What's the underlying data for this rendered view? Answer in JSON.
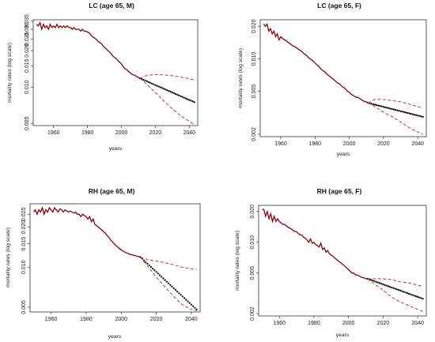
{
  "colors": {
    "observed": "#8b0000",
    "forecast": "#000000",
    "interval": "#c0392b",
    "axis": "#333333"
  },
  "chart_data": [
    {
      "type": "line",
      "title": "LC (age 65, M)",
      "xlabel": "years",
      "ylabel": "mortality rates (log scale)",
      "log_y": true,
      "xlim": [
        1948,
        2045
      ],
      "ylim": [
        0.0048,
        0.036
      ],
      "xticks": [
        1960,
        1980,
        2000,
        2020,
        2040
      ],
      "yticks": [
        0.005,
        0.01,
        0.015,
        0.02,
        0.025,
        0.03,
        0.035
      ],
      "ytick_labels": [
        "0.005",
        "0.010",
        "0.015",
        "0.020",
        "0.025",
        "0.030",
        "0.035"
      ],
      "series": [
        {
          "role": "observed",
          "x": [
            1950,
            1951,
            1952,
            1953,
            1954,
            1955,
            1956,
            1957,
            1958,
            1959,
            1960,
            1961,
            1962,
            1963,
            1964,
            1965,
            1966,
            1967,
            1968,
            1969,
            1970,
            1971,
            1972,
            1973,
            1974,
            1975,
            1976,
            1977,
            1978,
            1979,
            1980,
            1981,
            1982,
            1983,
            1984,
            1985,
            1986,
            1987,
            1988,
            1989,
            1990,
            1991,
            1992,
            1993,
            1994,
            1995,
            1996,
            1997,
            1998,
            1999,
            2000,
            2001,
            2002,
            2003,
            2004,
            2005,
            2006,
            2007,
            2008,
            2009,
            2010,
            2011
          ],
          "y": [
            0.033,
            0.032,
            0.034,
            0.03,
            0.033,
            0.031,
            0.032,
            0.03,
            0.033,
            0.031,
            0.032,
            0.031,
            0.033,
            0.031,
            0.032,
            0.031,
            0.032,
            0.031,
            0.032,
            0.031,
            0.031,
            0.03,
            0.031,
            0.03,
            0.03,
            0.03,
            0.029,
            0.03,
            0.029,
            0.029,
            0.0285,
            0.028,
            0.027,
            0.026,
            0.0255,
            0.025,
            0.024,
            0.0235,
            0.023,
            0.022,
            0.0213,
            0.0207,
            0.02,
            0.0195,
            0.0188,
            0.018,
            0.0175,
            0.0172,
            0.0165,
            0.016,
            0.0155,
            0.0148,
            0.0142,
            0.014,
            0.0135,
            0.0132,
            0.0128,
            0.0126,
            0.0125,
            0.0122,
            0.012,
            0.0118
          ]
        },
        {
          "role": "forecast",
          "x": [
            2011,
            2043
          ],
          "y": [
            0.0118,
            0.0075
          ]
        },
        {
          "role": "upper",
          "x": [
            2011,
            2015,
            2020,
            2025,
            2030,
            2035,
            2040,
            2043
          ],
          "y": [
            0.0118,
            0.0125,
            0.0127,
            0.0126,
            0.0124,
            0.0121,
            0.0117,
            0.0114
          ]
        },
        {
          "role": "lower",
          "x": [
            2011,
            2015,
            2020,
            2025,
            2030,
            2035,
            2040,
            2043
          ],
          "y": [
            0.0118,
            0.0105,
            0.009,
            0.0077,
            0.0066,
            0.0058,
            0.0052,
            0.0049
          ]
        }
      ]
    },
    {
      "type": "line",
      "title": "LC (age 65, F)",
      "xlabel": "years",
      "ylabel": "mortality rates (log scale)",
      "log_y": true,
      "xlim": [
        1948,
        2045
      ],
      "ylim": [
        0.0019,
        0.023
      ],
      "xticks": [
        1960,
        1980,
        2000,
        2020,
        2040
      ],
      "yticks": [
        0.002,
        0.005,
        0.01,
        0.02
      ],
      "ytick_labels": [
        "0.002",
        "0.005",
        "0.010",
        "0.020"
      ],
      "series": [
        {
          "role": "observed",
          "x": [
            1950,
            1951,
            1952,
            1953,
            1954,
            1955,
            1956,
            1957,
            1958,
            1959,
            1960,
            1961,
            1962,
            1963,
            1964,
            1965,
            1966,
            1967,
            1968,
            1969,
            1970,
            1971,
            1972,
            1973,
            1974,
            1975,
            1976,
            1977,
            1978,
            1979,
            1980,
            1981,
            1982,
            1983,
            1984,
            1985,
            1986,
            1987,
            1988,
            1989,
            1990,
            1991,
            1992,
            1993,
            1994,
            1995,
            1996,
            1997,
            1998,
            1999,
            2000,
            2001,
            2002,
            2003,
            2004,
            2005,
            2006,
            2007,
            2008,
            2009,
            2010,
            2011
          ],
          "y": [
            0.021,
            0.02,
            0.021,
            0.018,
            0.019,
            0.017,
            0.018,
            0.016,
            0.017,
            0.015,
            0.016,
            0.0155,
            0.015,
            0.0148,
            0.0143,
            0.014,
            0.0136,
            0.0132,
            0.013,
            0.0127,
            0.0124,
            0.012,
            0.0118,
            0.0114,
            0.011,
            0.0108,
            0.0103,
            0.01,
            0.0098,
            0.0095,
            0.0092,
            0.0088,
            0.0086,
            0.0082,
            0.0079,
            0.0077,
            0.0075,
            0.0072,
            0.007,
            0.0068,
            0.0066,
            0.0064,
            0.0062,
            0.006,
            0.0059,
            0.0057,
            0.0055,
            0.0054,
            0.0052,
            0.005,
            0.0049,
            0.0047,
            0.0046,
            0.0045,
            0.0044,
            0.0044,
            0.0043,
            0.0042,
            0.0041,
            0.004,
            0.004,
            0.0039
          ]
        },
        {
          "role": "forecast",
          "x": [
            2011,
            2043
          ],
          "y": [
            0.0039,
            0.0029
          ]
        },
        {
          "role": "upper",
          "x": [
            2011,
            2015,
            2020,
            2025,
            2030,
            2035,
            2040,
            2043
          ],
          "y": [
            0.0039,
            0.0042,
            0.0042,
            0.0041,
            0.004,
            0.0038,
            0.0036,
            0.0035
          ]
        },
        {
          "role": "lower",
          "x": [
            2011,
            2015,
            2020,
            2025,
            2030,
            2035,
            2040,
            2043
          ],
          "y": [
            0.0039,
            0.0036,
            0.0032,
            0.0029,
            0.0026,
            0.0023,
            0.0021,
            0.002
          ]
        }
      ]
    },
    {
      "type": "line",
      "title": "RH (age 65, M)",
      "xlabel": "years",
      "ylabel": "mortality rates (log scale)",
      "log_y": true,
      "xlim": [
        1948,
        2045
      ],
      "ylim": [
        0.0046,
        0.03
      ],
      "xticks": [
        1960,
        1980,
        2000,
        2020,
        2040
      ],
      "yticks": [
        0.005,
        0.01,
        0.015,
        0.02,
        0.025
      ],
      "ytick_labels": [
        "0.005",
        "0.010",
        "0.015",
        "0.020",
        "0.025"
      ],
      "series": [
        {
          "role": "observed",
          "x": [
            1950,
            1951,
            1952,
            1953,
            1954,
            1955,
            1956,
            1957,
            1958,
            1959,
            1960,
            1961,
            1962,
            1963,
            1964,
            1965,
            1966,
            1967,
            1968,
            1969,
            1970,
            1971,
            1972,
            1973,
            1974,
            1975,
            1976,
            1977,
            1978,
            1979,
            1980,
            1981,
            1982,
            1983,
            1984,
            1985,
            1986,
            1987,
            1988,
            1989,
            1990,
            1991,
            1992,
            1993,
            1994,
            1995,
            1996,
            1997,
            1998,
            1999,
            2000,
            2001,
            2002,
            2003,
            2004,
            2005,
            2006,
            2007,
            2008,
            2009,
            2010,
            2011
          ],
          "y": [
            0.026,
            0.027,
            0.025,
            0.027,
            0.026,
            0.028,
            0.025,
            0.027,
            0.026,
            0.028,
            0.027,
            0.026,
            0.028,
            0.027,
            0.026,
            0.0275,
            0.027,
            0.026,
            0.027,
            0.0265,
            0.026,
            0.0265,
            0.026,
            0.0255,
            0.026,
            0.025,
            0.025,
            0.024,
            0.025,
            0.0245,
            0.024,
            0.023,
            0.024,
            0.022,
            0.023,
            0.021,
            0.0205,
            0.02,
            0.0195,
            0.019,
            0.0185,
            0.018,
            0.0172,
            0.0168,
            0.016,
            0.0155,
            0.015,
            0.0145,
            0.0142,
            0.0138,
            0.0135,
            0.0132,
            0.013,
            0.0128,
            0.0127,
            0.0125,
            0.0124,
            0.0123,
            0.0122,
            0.0121,
            0.012,
            0.0119
          ]
        },
        {
          "role": "forecast",
          "x": [
            2011,
            2043
          ],
          "y": [
            0.0119,
            0.0048
          ]
        },
        {
          "role": "upper",
          "x": [
            2011,
            2015,
            2020,
            2025,
            2030,
            2035,
            2040,
            2043
          ],
          "y": [
            0.0119,
            0.0114,
            0.0111,
            0.0108,
            0.0104,
            0.01,
            0.0097,
            0.0096
          ]
        },
        {
          "role": "lower",
          "x": [
            2011,
            2015,
            2020,
            2025,
            2030,
            2035,
            2040,
            2043
          ],
          "y": [
            0.0119,
            0.0102,
            0.0084,
            0.0071,
            0.006,
            0.0052,
            0.0048,
            0.0047
          ]
        }
      ]
    },
    {
      "type": "line",
      "title": "RH (age 65, F)",
      "xlabel": "years",
      "ylabel": "mortality rates (log scale)",
      "log_y": true,
      "xlim": [
        1948,
        2045
      ],
      "ylim": [
        0.0019,
        0.023
      ],
      "xticks": [
        1960,
        1980,
        2000,
        2020,
        2040
      ],
      "yticks": [
        0.002,
        0.005,
        0.01,
        0.02
      ],
      "ytick_labels": [
        "0.002",
        "0.005",
        "0.010",
        "0.020"
      ],
      "series": [
        {
          "role": "observed",
          "x": [
            1950,
            1951,
            1952,
            1953,
            1954,
            1955,
            1956,
            1957,
            1958,
            1959,
            1960,
            1961,
            1962,
            1963,
            1964,
            1965,
            1966,
            1967,
            1968,
            1969,
            1970,
            1971,
            1972,
            1973,
            1974,
            1975,
            1976,
            1977,
            1978,
            1979,
            1980,
            1981,
            1982,
            1983,
            1984,
            1985,
            1986,
            1987,
            1988,
            1989,
            1990,
            1991,
            1992,
            1993,
            1994,
            1995,
            1996,
            1997,
            1998,
            1999,
            2000,
            2001,
            2002,
            2003,
            2004,
            2005,
            2006,
            2007,
            2008,
            2009,
            2010,
            2011
          ],
          "y": [
            0.021,
            0.021,
            0.018,
            0.02,
            0.017,
            0.019,
            0.016,
            0.018,
            0.016,
            0.017,
            0.016,
            0.0155,
            0.015,
            0.015,
            0.0145,
            0.014,
            0.0138,
            0.0135,
            0.013,
            0.0128,
            0.0126,
            0.0122,
            0.0118,
            0.0118,
            0.0112,
            0.011,
            0.0105,
            0.01,
            0.0108,
            0.0098,
            0.01,
            0.0095,
            0.0093,
            0.009,
            0.0098,
            0.0085,
            0.0088,
            0.008,
            0.0083,
            0.0077,
            0.0075,
            0.0073,
            0.007,
            0.0068,
            0.0066,
            0.0064,
            0.0062,
            0.006,
            0.0058,
            0.0056,
            0.0054,
            0.0052,
            0.005,
            0.005,
            0.0048,
            0.0048,
            0.0047,
            0.0046,
            0.0045,
            0.0045,
            0.0044,
            0.0044
          ]
        },
        {
          "role": "forecast",
          "x": [
            2011,
            2043
          ],
          "y": [
            0.0044,
            0.0028
          ]
        },
        {
          "role": "upper",
          "x": [
            2011,
            2015,
            2020,
            2025,
            2030,
            2035,
            2040,
            2043
          ],
          "y": [
            0.0044,
            0.0044,
            0.0044,
            0.0043,
            0.0041,
            0.004,
            0.0038,
            0.0037
          ]
        },
        {
          "role": "lower",
          "x": [
            2011,
            2015,
            2020,
            2025,
            2030,
            2035,
            2040,
            2043
          ],
          "y": [
            0.0044,
            0.0039,
            0.0034,
            0.0029,
            0.0026,
            0.0024,
            0.0022,
            0.0021
          ]
        }
      ]
    }
  ]
}
